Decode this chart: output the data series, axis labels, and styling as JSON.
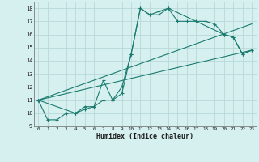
{
  "xlabel": "Humidex (Indice chaleur)",
  "bg_color": "#d6f0f0",
  "grid_color": "#b8d8d8",
  "line_color": "#1a7a6e",
  "xlim": [
    -0.5,
    23.5
  ],
  "ylim": [
    9,
    18.5
  ],
  "yticks": [
    9,
    10,
    11,
    12,
    13,
    14,
    15,
    16,
    17,
    18
  ],
  "xticks": [
    0,
    1,
    2,
    3,
    4,
    5,
    6,
    7,
    8,
    9,
    10,
    11,
    12,
    13,
    14,
    15,
    16,
    17,
    18,
    19,
    20,
    21,
    22,
    23
  ],
  "series1_x": [
    0,
    1,
    2,
    3,
    4,
    5,
    6,
    7,
    8,
    9,
    10,
    11,
    12,
    13,
    14,
    15,
    16,
    17,
    18,
    19,
    20,
    21,
    22,
    23
  ],
  "series1_y": [
    11,
    9.5,
    9.5,
    10,
    10,
    10.5,
    10.5,
    11,
    11,
    12,
    14.5,
    18,
    17.5,
    17.5,
    18,
    17,
    17,
    17,
    17,
    16.8,
    16,
    15.8,
    14.5,
    14.8
  ],
  "series2_x": [
    0,
    4,
    5,
    6,
    7,
    8,
    9,
    10,
    11,
    12,
    13,
    14,
    20,
    21,
    22,
    23
  ],
  "series2_y": [
    11,
    10,
    10.3,
    10.5,
    12.5,
    11,
    11.5,
    14.5,
    18,
    17.5,
    17.75,
    18,
    16,
    15.8,
    14.5,
    14.8
  ],
  "series3_x": [
    0,
    23
  ],
  "series3_y": [
    11,
    14.8
  ],
  "series4_x": [
    0,
    23
  ],
  "series4_y": [
    11,
    16.8
  ]
}
